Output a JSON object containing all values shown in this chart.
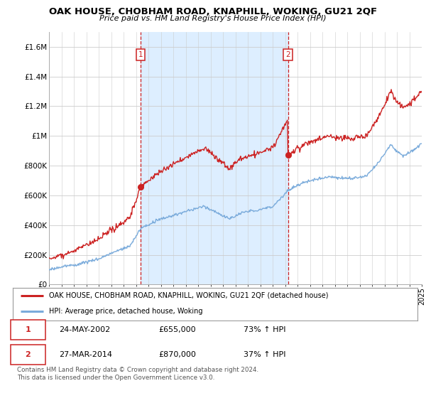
{
  "title": "OAK HOUSE, CHOBHAM ROAD, KNAPHILL, WOKING, GU21 2QF",
  "subtitle": "Price paid vs. HM Land Registry's House Price Index (HPI)",
  "ylim": [
    0,
    1700000
  ],
  "yticks": [
    0,
    200000,
    400000,
    600000,
    800000,
    1000000,
    1200000,
    1400000,
    1600000
  ],
  "ytick_labels": [
    "£0",
    "£200K",
    "£400K",
    "£600K",
    "£800K",
    "£1M",
    "£1.2M",
    "£1.4M",
    "£1.6M"
  ],
  "x_start_year": 1995,
  "x_end_year": 2025,
  "hpi_color": "#7aabdb",
  "price_color": "#cc2222",
  "shade_color": "#ddeeff",
  "sale1_date": 2002.38,
  "sale1_price": 655000,
  "sale2_date": 2014.23,
  "sale2_price": 870000,
  "legend_property": "OAK HOUSE, CHOBHAM ROAD, KNAPHILL, WOKING, GU21 2QF (detached house)",
  "legend_hpi": "HPI: Average price, detached house, Woking",
  "table_row1": [
    "1",
    "24-MAY-2002",
    "£655,000",
    "73% ↑ HPI"
  ],
  "table_row2": [
    "2",
    "27-MAR-2014",
    "£870,000",
    "37% ↑ HPI"
  ],
  "footnote": "Contains HM Land Registry data © Crown copyright and database right 2024.\nThis data is licensed under the Open Government Licence v3.0.",
  "background_color": "#ffffff",
  "grid_color": "#cccccc",
  "vline_color": "#cc2222"
}
